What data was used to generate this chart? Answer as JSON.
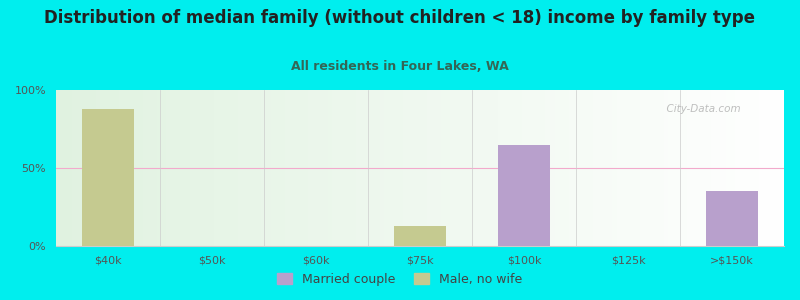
{
  "title": "Distribution of median family (without children < 18) income by family type",
  "subtitle": "All residents in Four Lakes, WA",
  "background_color": "#00EEEE",
  "categories": [
    "$40k",
    "$50k",
    "$60k",
    "$75k",
    "$100k",
    "$125k",
    ">$150k"
  ],
  "married_couple": [
    0,
    0,
    0,
    0,
    65,
    0,
    35
  ],
  "male_no_wife": [
    88,
    0,
    0,
    13,
    0,
    0,
    0
  ],
  "married_color": "#B8A0CC",
  "male_color": "#C5CA90",
  "bar_width": 0.5,
  "ylim": [
    0,
    100
  ],
  "yticks": [
    0,
    50,
    100
  ],
  "ytick_labels": [
    "0%",
    "50%",
    "100%"
  ],
  "grid_color": "#F2AACC",
  "watermark": "  City-Data.com",
  "title_fontsize": 12,
  "subtitle_fontsize": 9,
  "legend_fontsize": 9,
  "tick_fontsize": 8,
  "title_color": "#222222",
  "subtitle_color": "#336655",
  "tick_color": "#555555"
}
